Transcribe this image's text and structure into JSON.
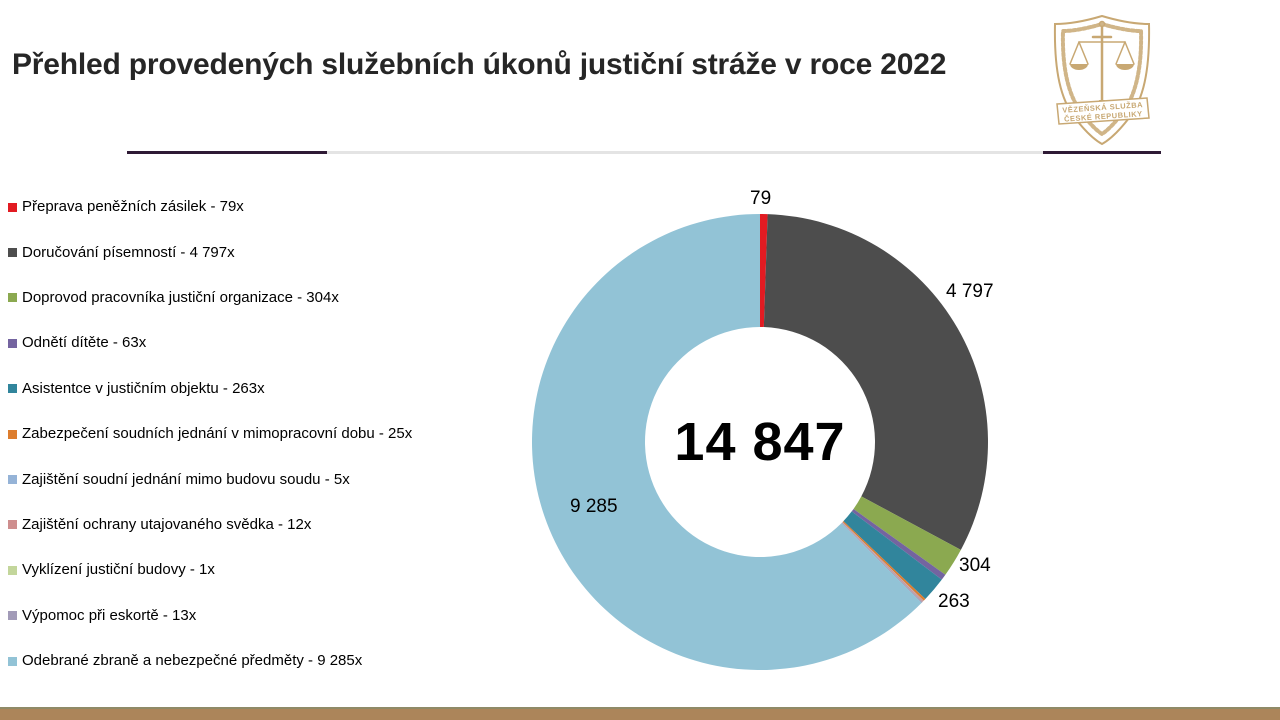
{
  "slide": {
    "title": "Přehled provedených služebních úkonů justiční stráže v roce 2022",
    "accent_color": "#2E1A35",
    "bottom_bar_color": "#AC855A",
    "logo": {
      "name": "vezenska-sluzba-emblem",
      "color": "#C8A873",
      "text_line1": "VĚZEŇSKÁ SLUŽBA",
      "text_line2": "ČESKÉ REPUBLIKY"
    }
  },
  "chart_data": {
    "type": "pie",
    "donut": true,
    "title": "Přehled provedených služebních úkonů justiční stráže v roce 2022",
    "total": 14847,
    "center_label": "14 847",
    "start_angle_deg": 0,
    "direction": "clockwise",
    "legend_position": "left",
    "categories": [
      "Přeprava peněžních zásilek",
      "Doručování písemností",
      "Doprovod pracovníka justiční organizace",
      "Odnětí dítěte",
      "Asistentce v justičním objektu",
      "Zabezpečení soudních jednání v mimopracovní dobu",
      "Zajištění soudní jednání mimo budovu soudu",
      "Zajištění ochrany utajovaného svědka",
      "Vyklízení justiční budovy",
      "Výpomoc při eskortě",
      "Odebrané zbraně a nebezpečné předměty"
    ],
    "values": [
      79,
      4797,
      304,
      63,
      263,
      25,
      5,
      12,
      1,
      13,
      9285
    ],
    "colors": [
      "#E21B22",
      "#4D4D4D",
      "#8BA950",
      "#7464A0",
      "#31859C",
      "#DD7D2E",
      "#95B3D7",
      "#CE8E8E",
      "#C3D69B",
      "#A29BB8",
      "#92C3D6"
    ],
    "legend_labels": [
      "Přeprava peněžních zásilek - 79x",
      "Doručování písemností - 4 797x",
      "Doprovod pracovníka justiční organizace - 304x",
      "Odnětí dítěte - 63x",
      "Asistentce v justičním objektu - 263x",
      "Zabezpečení soudních jednání v mimopracovní dobu - 25x",
      "Zajištění soudní jednání mimo budovu soudu - 5x",
      "Zajištění ochrany utajovaného svědka - 12x",
      "Vyklízení justiční budovy - 1x",
      "Výpomoc při eskortě - 13x",
      "Odebrané zbraně a nebezpečné předměty - 9 285x"
    ],
    "callouts": [
      {
        "slice": "Přeprava peněžních zásilek",
        "text": "79"
      },
      {
        "slice": "Doručování písemností",
        "text": "4 797"
      },
      {
        "slice": "Doprovod pracovníka justiční organizace",
        "text": "304"
      },
      {
        "slice": "Asistentce v justičním objektu",
        "text": "263"
      },
      {
        "slice": "Odebrané zbraně a nebezpečné předměty",
        "text": "9 285"
      }
    ]
  }
}
